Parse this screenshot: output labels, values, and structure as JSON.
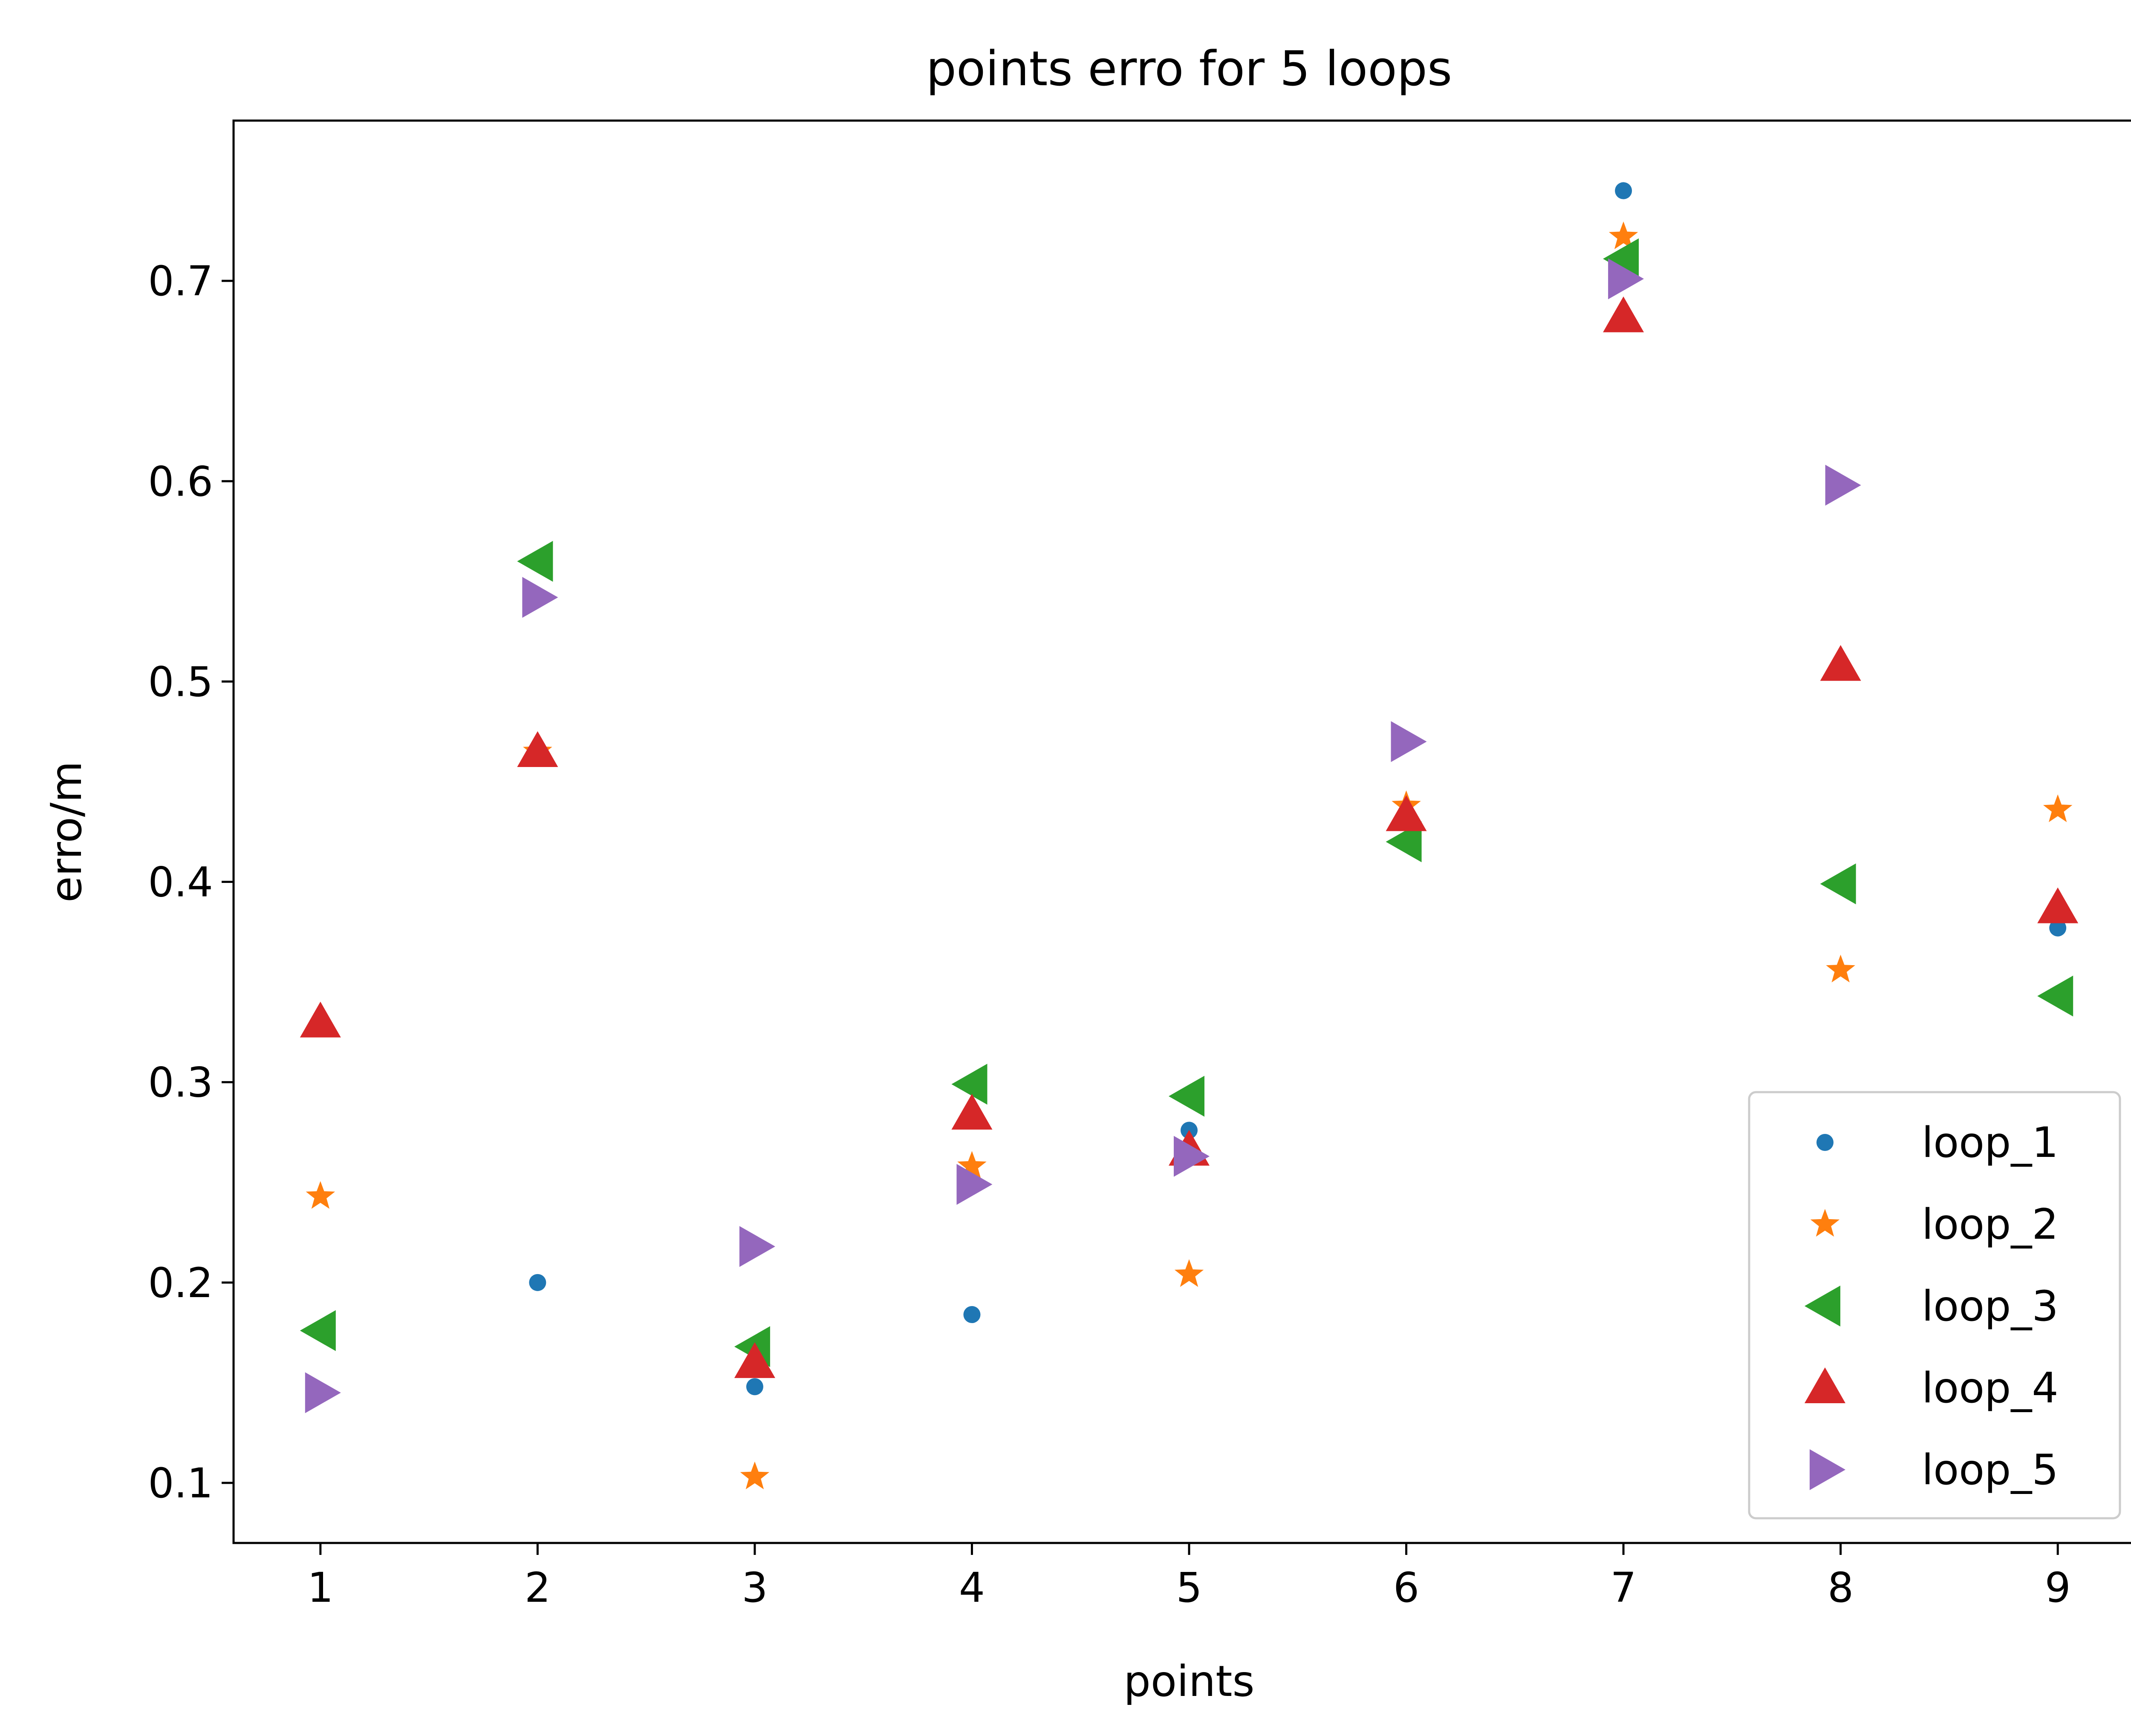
{
  "chart_data": {
    "type": "scatter",
    "title": "points erro for 5 loops",
    "xlabel": "points",
    "ylabel": "erro/m",
    "x": [
      1,
      2,
      3,
      4,
      5,
      6,
      7,
      8,
      9
    ],
    "xlim": [
      0.6,
      9.4
    ],
    "ylim": [
      0.07,
      0.78
    ],
    "xticks": [
      "1",
      "2",
      "3",
      "4",
      "5",
      "6",
      "7",
      "8",
      "9"
    ],
    "yticks": [
      "0.1",
      "0.2",
      "0.3",
      "0.4",
      "0.5",
      "0.6",
      "0.7"
    ],
    "grid": false,
    "legend_position": "lower-right",
    "series": [
      {
        "name": "loop_1",
        "marker": "circle",
        "color": "#1f77b4",
        "values": [
          null,
          0.2,
          0.148,
          0.184,
          0.276,
          null,
          0.745,
          null,
          0.377
        ]
      },
      {
        "name": "loop_2",
        "marker": "star",
        "color": "#ff7f0e",
        "values": [
          0.243,
          0.465,
          0.103,
          0.258,
          0.204,
          0.438,
          0.722,
          0.356,
          0.436
        ]
      },
      {
        "name": "loop_3",
        "marker": "triangle-left",
        "color": "#2ca02c",
        "values": [
          0.176,
          0.56,
          0.168,
          0.299,
          0.293,
          0.42,
          0.711,
          0.399,
          0.343
        ]
      },
      {
        "name": "loop_4",
        "marker": "triangle-up",
        "color": "#d62728",
        "values": [
          0.33,
          0.465,
          0.16,
          0.284,
          0.266,
          0.433,
          0.682,
          0.508,
          0.387
        ]
      },
      {
        "name": "loop_5",
        "marker": "triangle-right",
        "color": "#9467bd",
        "values": [
          0.145,
          0.542,
          0.218,
          0.249,
          0.263,
          0.47,
          0.701,
          0.598,
          null
        ]
      }
    ]
  }
}
